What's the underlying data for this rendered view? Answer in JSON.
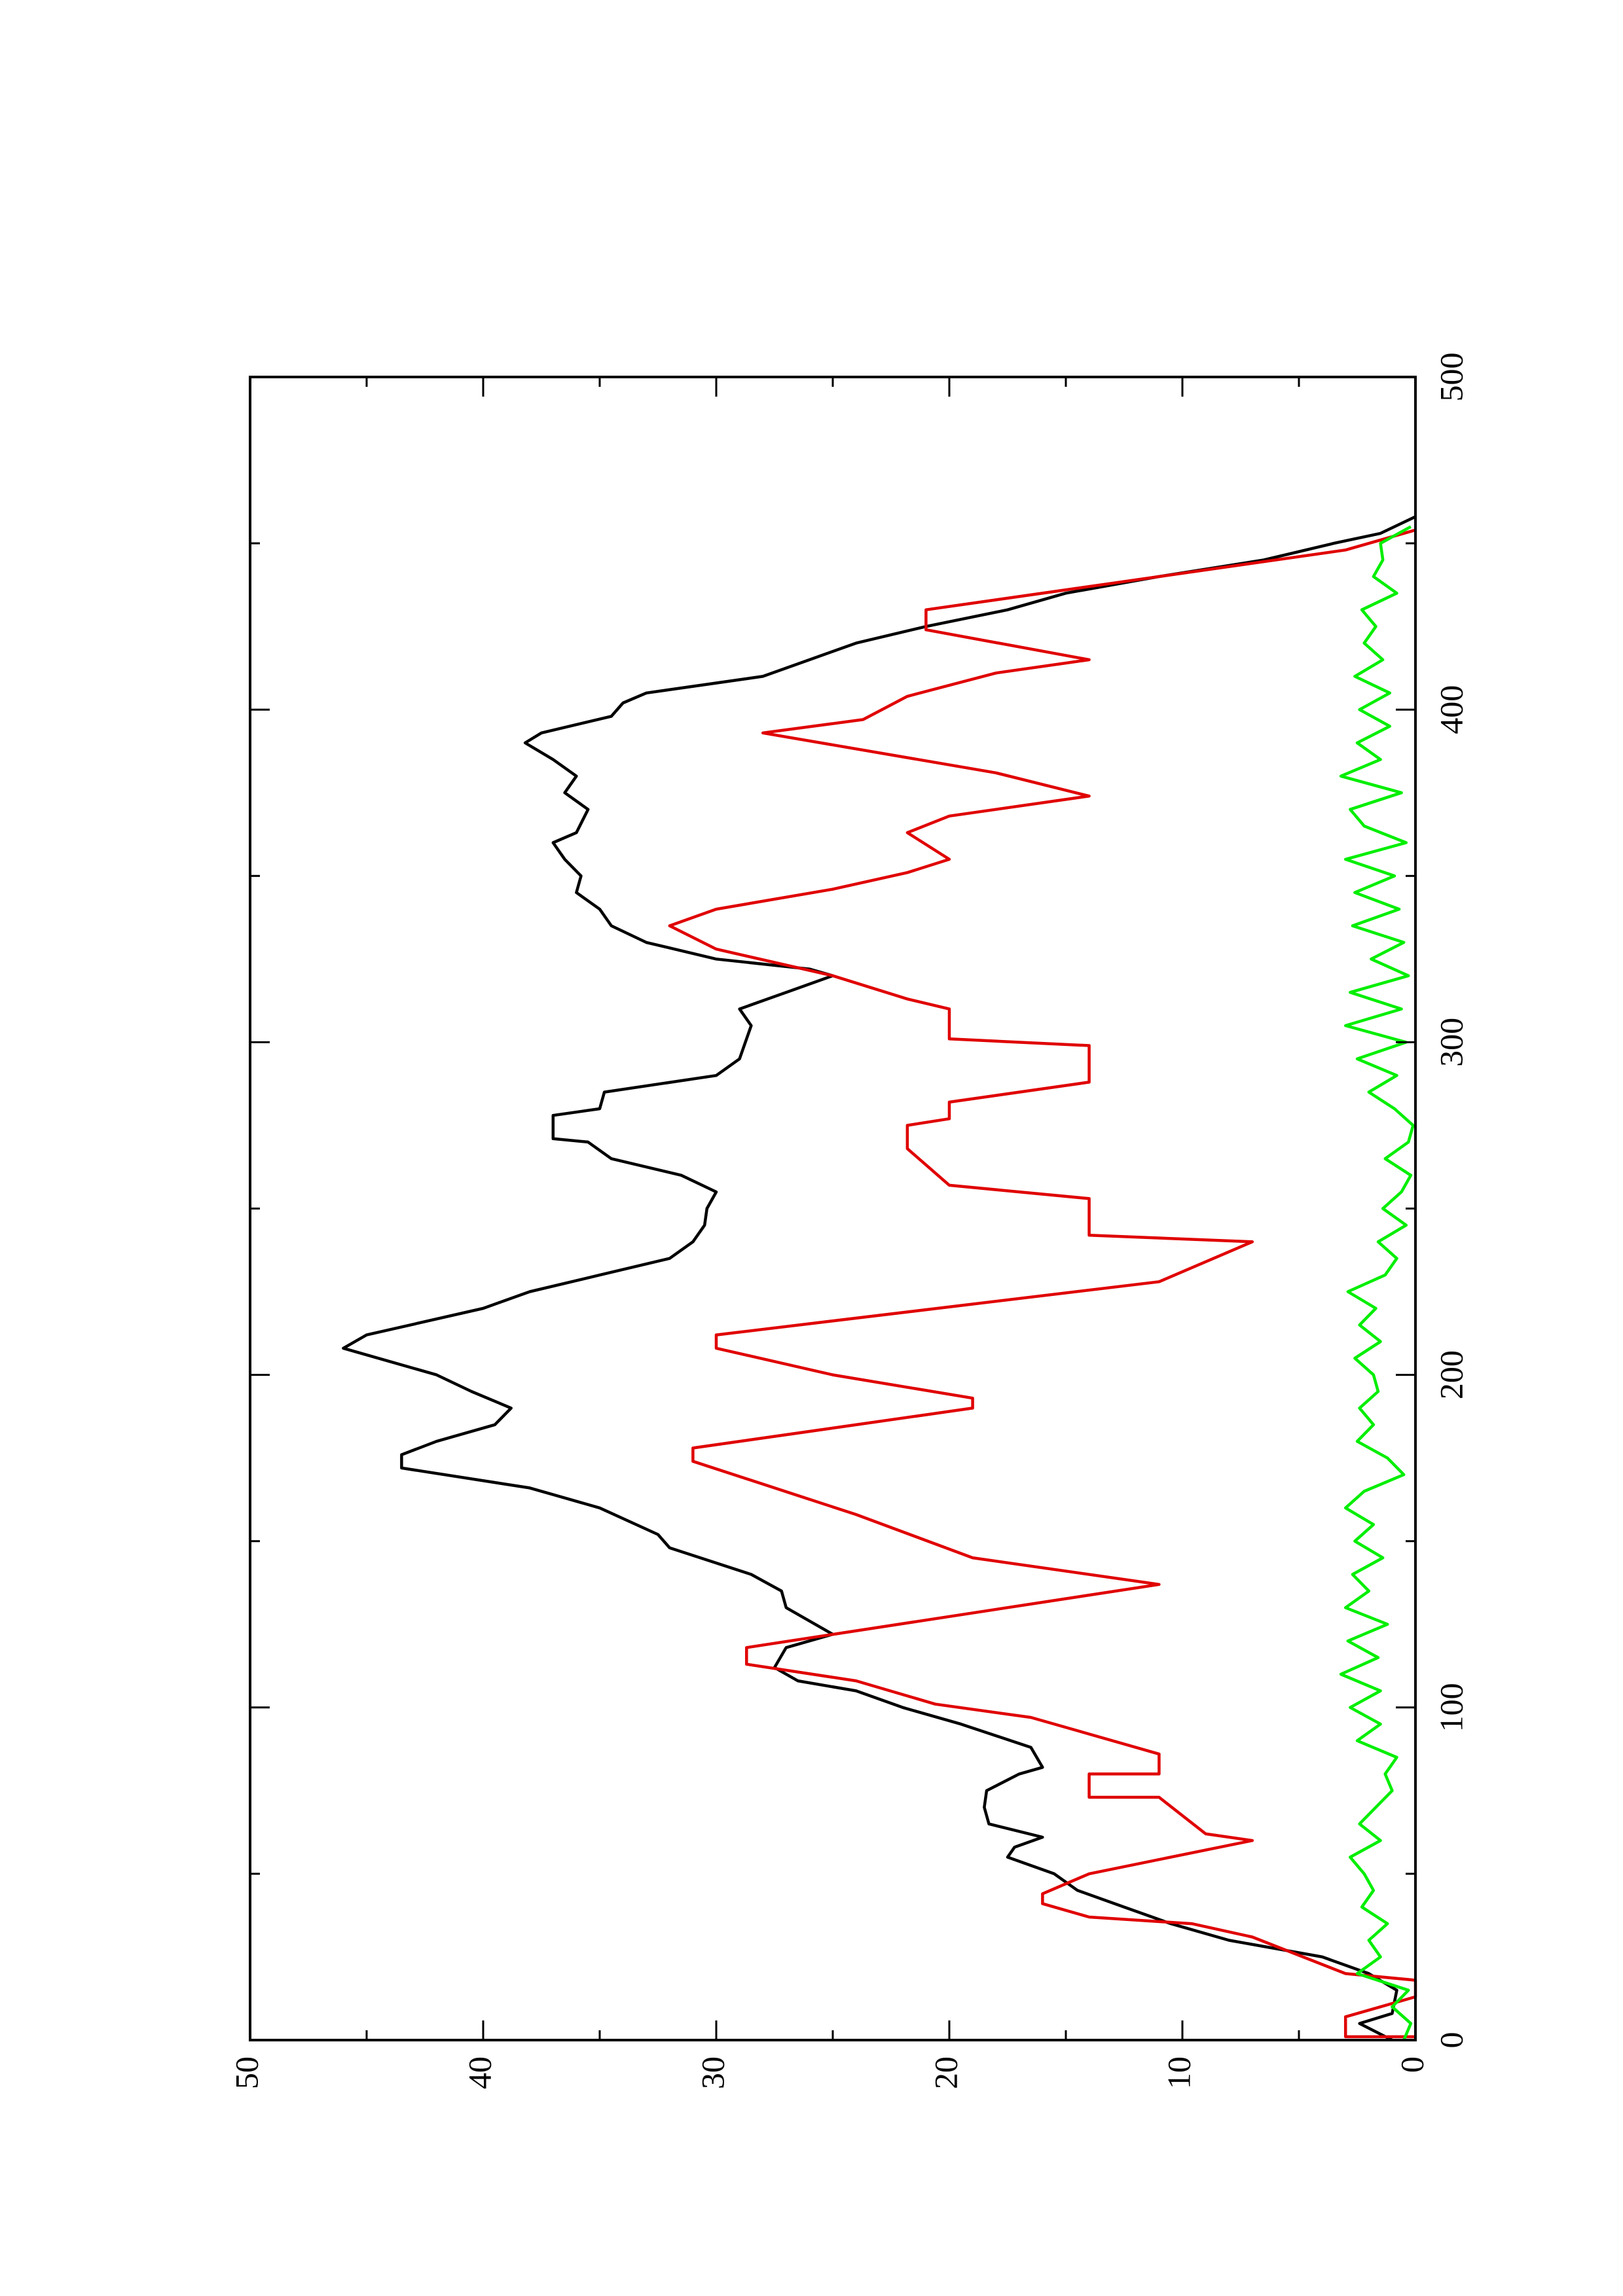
{
  "chart_data": {
    "type": "line",
    "orientation": "rotated-ccw",
    "xlim": [
      0,
      500
    ],
    "xticks": [
      0,
      100,
      200,
      300,
      400,
      500
    ],
    "xticks_minor": [
      50,
      150,
      250,
      350,
      450
    ],
    "ylim": [
      0,
      50
    ],
    "yticks": [
      0,
      10,
      20,
      30,
      40,
      50
    ],
    "yticks_minor": [
      5,
      15,
      25,
      35,
      45
    ],
    "series": [
      {
        "color": "#000000",
        "x": [
          0,
          5,
          8,
          15,
          20,
          25,
          30,
          35,
          40,
          45,
          50,
          55,
          58,
          61,
          65,
          70,
          75,
          80,
          82,
          88,
          95,
          100,
          105,
          108,
          112,
          118,
          122,
          126,
          130,
          135,
          140,
          148,
          152,
          160,
          166,
          172,
          176,
          180,
          185,
          190,
          195,
          200,
          205,
          208,
          212,
          220,
          225,
          230,
          235,
          240,
          245,
          250,
          255,
          260,
          265,
          270,
          271,
          278,
          280,
          285,
          290,
          295,
          305,
          310,
          315,
          320,
          322,
          325,
          330,
          335,
          340,
          345,
          350,
          355,
          360,
          363,
          370,
          375,
          380,
          385,
          390,
          393,
          398,
          402,
          405,
          410,
          415,
          420,
          425,
          430,
          435,
          440,
          445,
          450,
          453,
          458
        ],
        "values": [
          1,
          2.4,
          1,
          0.8,
          2,
          4,
          8,
          10.5,
          12.5,
          14.5,
          15.5,
          17.5,
          17.2,
          16,
          18.3,
          18.5,
          18.4,
          17,
          16,
          16.5,
          19.5,
          22,
          24,
          26.5,
          27.5,
          27,
          25,
          26,
          27,
          27.2,
          28.5,
          32,
          32.5,
          35,
          38,
          43.5,
          43.5,
          42,
          39.5,
          38.8,
          40.5,
          42,
          44.5,
          46,
          45,
          40,
          38,
          35,
          32,
          31,
          30.5,
          30.4,
          30,
          31.5,
          34.5,
          35.5,
          37,
          37,
          35,
          34.8,
          30,
          29,
          28.5,
          29,
          27,
          25,
          26,
          30,
          33,
          34.5,
          35,
          36,
          35.8,
          36.5,
          37,
          36,
          35.5,
          36.5,
          36,
          37,
          38.2,
          37.5,
          34.5,
          34,
          33,
          28,
          26,
          24,
          21,
          17.5,
          15,
          11,
          6.5,
          3.5,
          1.5,
          0
        ]
      },
      {
        "color": "#e00000",
        "x": [
          1,
          1,
          7,
          13,
          18,
          20,
          31,
          35,
          37,
          41,
          44,
          50,
          60,
          62,
          73,
          73,
          80,
          80,
          86,
          97,
          101,
          108,
          113,
          118,
          137,
          145,
          158,
          174,
          178,
          190,
          193,
          200,
          208,
          212,
          228,
          240,
          242,
          253,
          257,
          268,
          275,
          277,
          282,
          288,
          299,
          301,
          310,
          313,
          320,
          328,
          335,
          340,
          346,
          351,
          355,
          363,
          368,
          374,
          381,
          393,
          397,
          404,
          411,
          415,
          424,
          430,
          448,
          454
        ],
        "values": [
          0,
          3,
          3,
          0,
          0,
          3,
          7,
          9.6,
          14,
          16,
          16,
          14,
          7,
          9,
          11,
          14,
          14,
          11,
          11,
          16.5,
          20.6,
          24,
          28.7,
          28.7,
          11,
          19,
          24,
          31,
          31,
          19,
          19,
          25,
          30,
          30,
          11,
          7,
          14,
          14,
          20,
          21.8,
          21.8,
          20,
          20,
          14,
          14,
          20,
          20,
          21.8,
          25,
          30,
          32,
          30,
          25,
          21.8,
          20,
          21.8,
          20,
          14,
          18,
          28,
          23.7,
          21.8,
          18,
          14,
          21,
          21,
          3,
          0
        ]
      },
      {
        "color": "#00ee00",
        "x": [
          0,
          5,
          10,
          15,
          20,
          25,
          30,
          35,
          40,
          45,
          50,
          55,
          60,
          65,
          70,
          75,
          80,
          85,
          90,
          95,
          100,
          105,
          110,
          115,
          120,
          125,
          130,
          135,
          140,
          145,
          150,
          155,
          160,
          165,
          170,
          175,
          180,
          185,
          190,
          195,
          200,
          205,
          210,
          215,
          220,
          225,
          230,
          235,
          240,
          245,
          250,
          255,
          260,
          265,
          270,
          275,
          280,
          285,
          290,
          295,
          300,
          305,
          310,
          315,
          320,
          325,
          330,
          335,
          340,
          345,
          350,
          355,
          360,
          365,
          370,
          375,
          380,
          385,
          390,
          395,
          400,
          405,
          410,
          415,
          420,
          425,
          430,
          435,
          440,
          445,
          450,
          455
        ],
        "values": [
          0.5,
          0.2,
          1,
          0.3,
          2.5,
          1.5,
          2,
          1.2,
          2.3,
          1.8,
          2.2,
          2.8,
          1.5,
          2.4,
          1.7,
          1,
          1.3,
          0.8,
          2.5,
          1.5,
          2.8,
          1.5,
          3.2,
          1.6,
          2.9,
          1.2,
          3,
          2,
          2.7,
          1.4,
          2.6,
          1.8,
          3,
          2.2,
          0.5,
          1.2,
          2.5,
          1.8,
          2.4,
          1.6,
          1.8,
          2.6,
          1.5,
          2.4,
          1.7,
          2.9,
          1.3,
          0.8,
          1.6,
          0.4,
          1.4,
          0.6,
          0.2,
          1.3,
          0.3,
          0.1,
          0.9,
          2,
          0.8,
          2.5,
          0.4,
          3,
          0.6,
          2.8,
          0.3,
          1.9,
          0.5,
          2.7,
          0.7,
          2.6,
          0.9,
          3,
          0.4,
          2.2,
          2.8,
          0.6,
          3.2,
          1.5,
          2.5,
          1.1,
          2.4,
          1.1,
          2.6,
          1.4,
          2.2,
          1.7,
          2.3,
          0.8,
          1.8,
          1.4,
          1.5,
          0.2
        ]
      }
    ]
  }
}
